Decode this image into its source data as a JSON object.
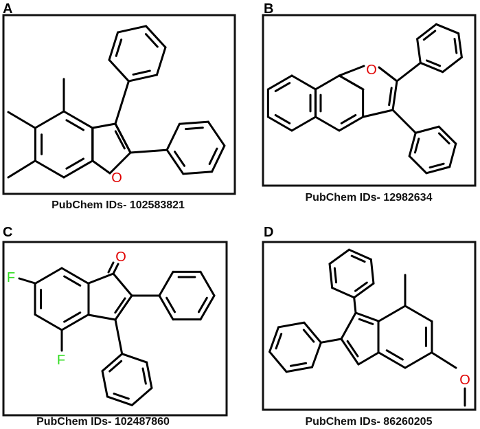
{
  "panels": [
    {
      "label": "A",
      "caption": "PubChem IDs- 102583821",
      "atoms": [
        "O"
      ]
    },
    {
      "label": "B",
      "caption": "PubChem IDs- 12982634",
      "atoms": [
        "O"
      ]
    },
    {
      "label": "C",
      "caption": "PubChem IDs- 102487860",
      "atoms": [
        "O",
        "F",
        "F"
      ]
    },
    {
      "label": "D",
      "caption": "PubChem IDs- 86260205",
      "atoms": [
        "O"
      ]
    }
  ]
}
